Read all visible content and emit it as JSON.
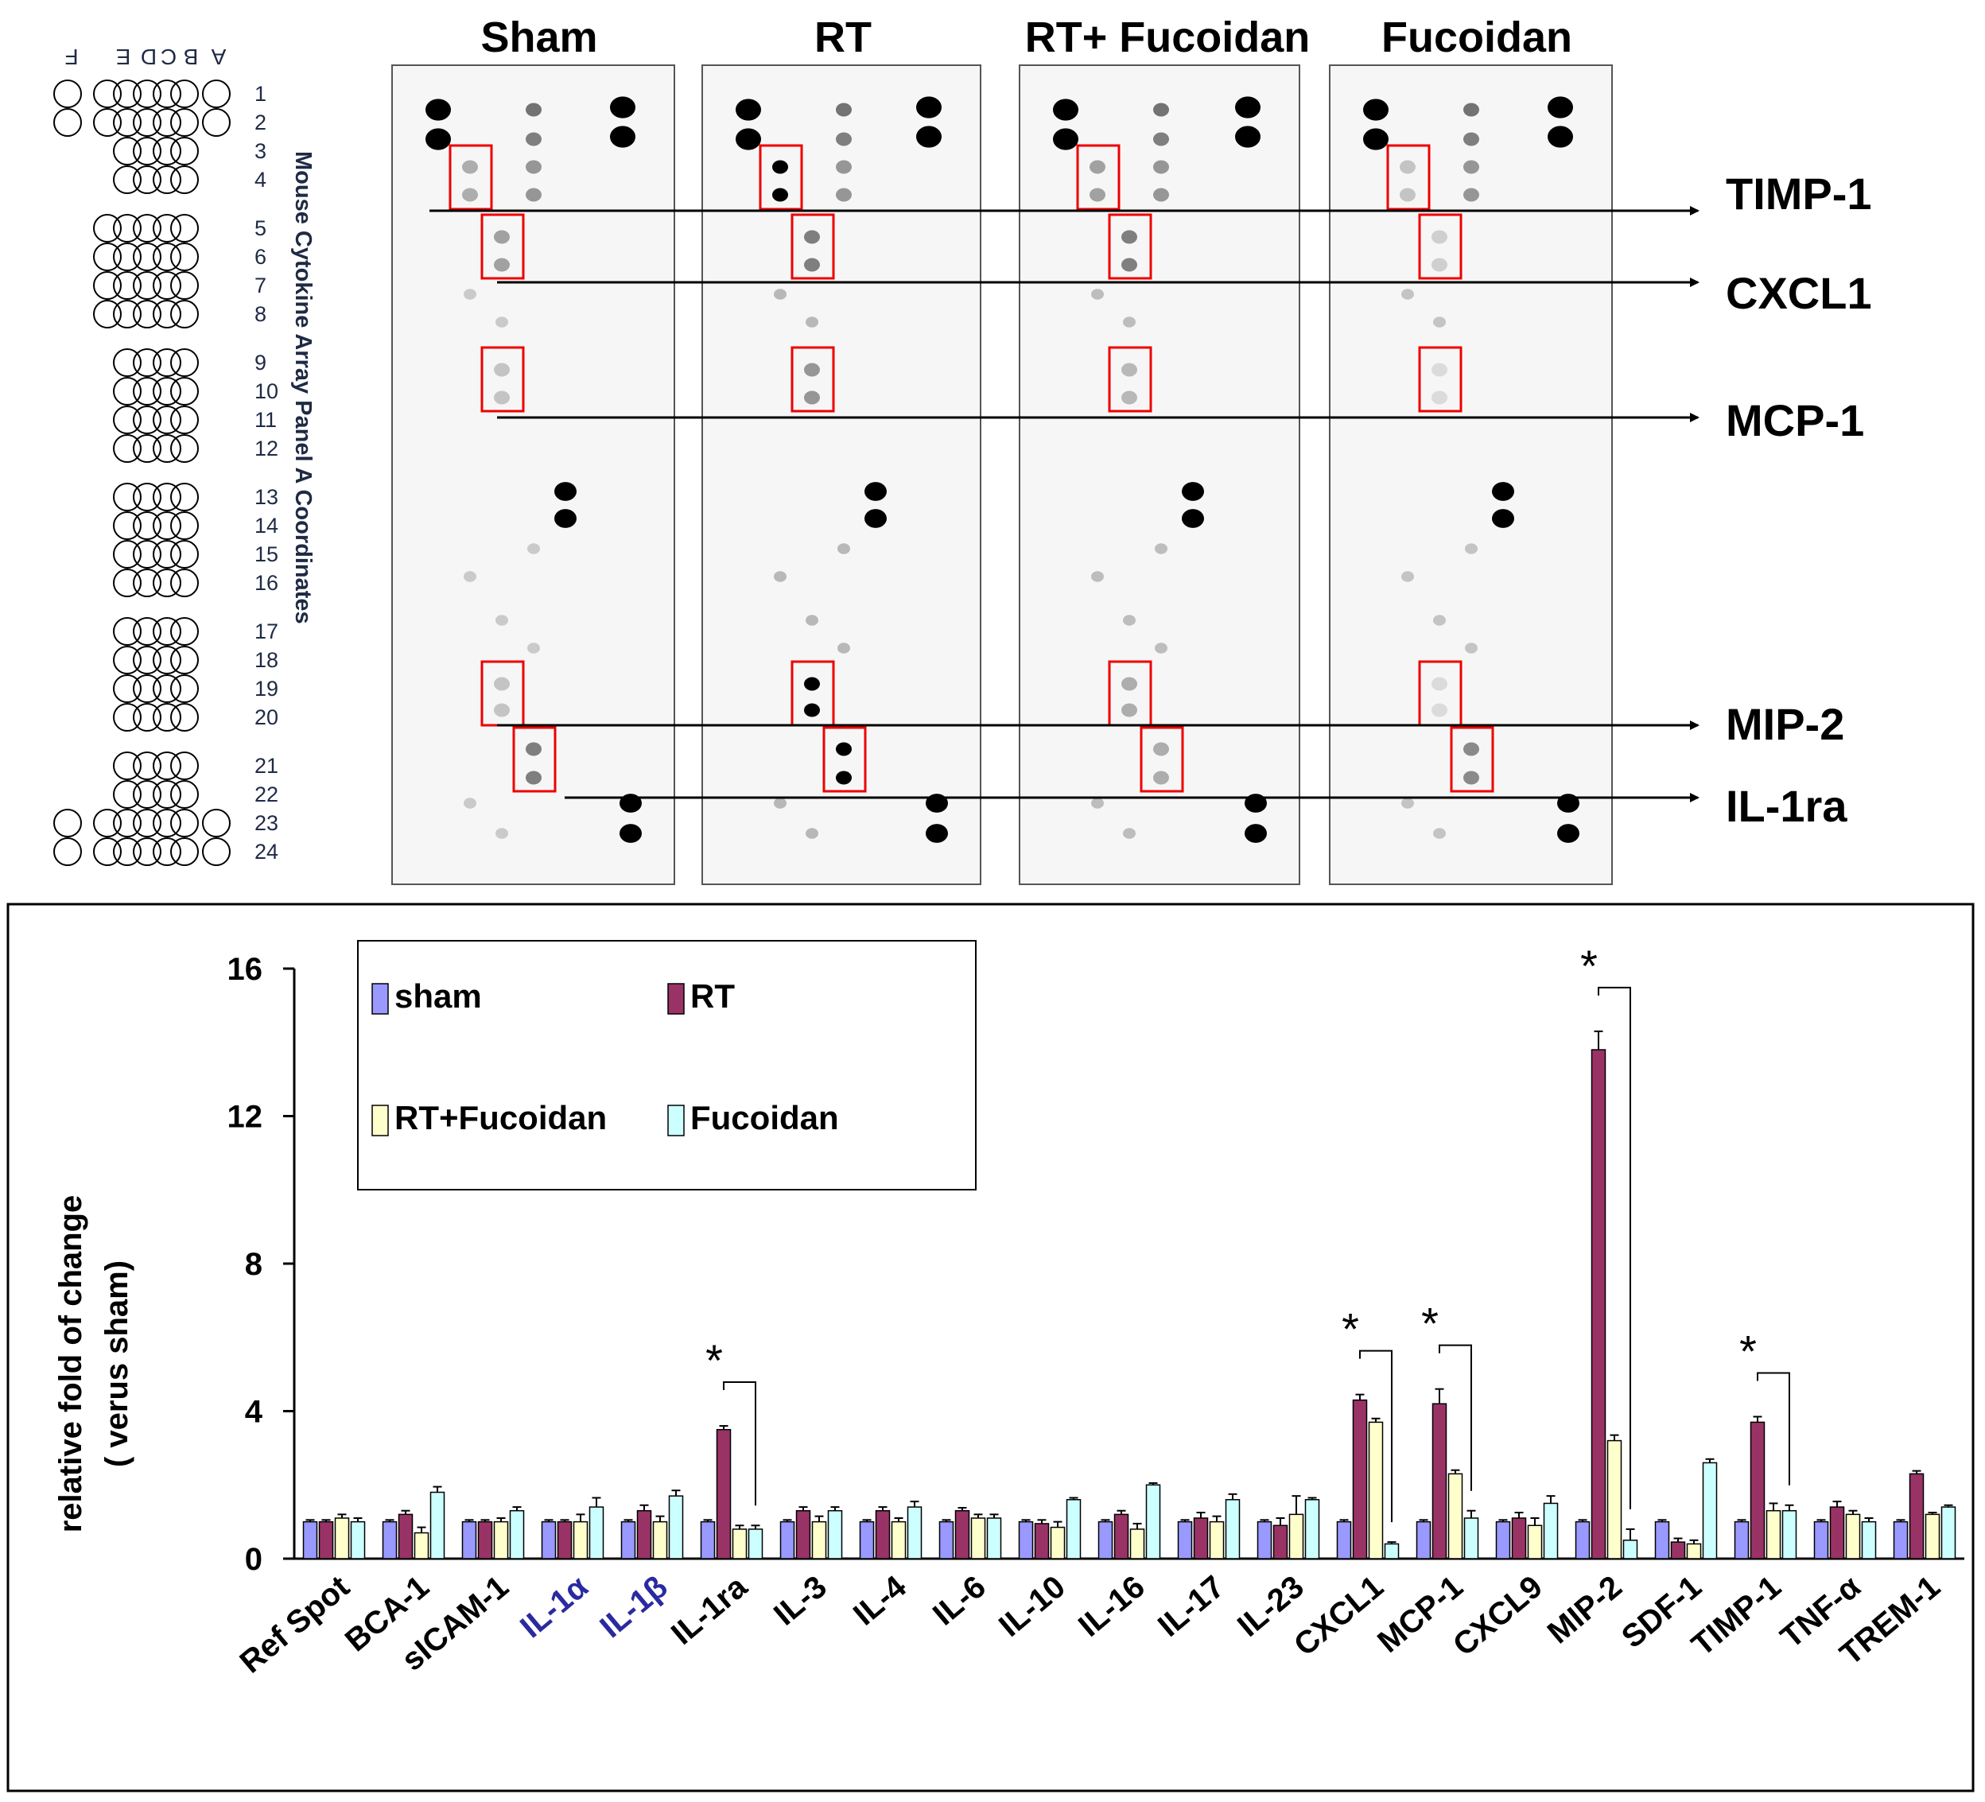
{
  "blot": {
    "panel_titles": [
      "Sham",
      "RT",
      "RT+ Fucoidan",
      "Fucoidan"
    ],
    "array_title": "Mouse Cytokine Array Panel A Coordinates",
    "column_letters": [
      "A",
      "B",
      "C",
      "D",
      "E",
      "F"
    ],
    "row_numbers": [
      "1",
      "2",
      "3",
      "4",
      "5",
      "6",
      "7",
      "8",
      "9",
      "10",
      "11",
      "12",
      "13",
      "14",
      "15",
      "16",
      "17",
      "18",
      "19",
      "20",
      "21",
      "22",
      "23",
      "24"
    ],
    "arrow_labels": [
      "TIMP-1",
      "CXCL1",
      "MCP-1",
      "MIP-2",
      "IL-1ra"
    ]
  },
  "chart_data": {
    "type": "bar",
    "ylabel": "relative fold of change",
    "ylabel2": "( verus sham)",
    "ylim": [
      0,
      16
    ],
    "yticks": [
      "0",
      "4",
      "8",
      "12",
      "16"
    ],
    "categories": [
      "Ref Spot",
      "BCA-1",
      "sICAM-1",
      "IL-1α",
      "IL-1β",
      "IL-1ra",
      "IL-3",
      "IL-4",
      "IL-6",
      "IL-10",
      "IL-16",
      "IL-17",
      "IL-23",
      "CXCL1",
      "MCP-1",
      "CXCL9",
      "MIP-2",
      "SDF-1",
      "TIMP-1",
      "TNF-α",
      "TREM-1"
    ],
    "series": [
      {
        "name": "sham",
        "color": "#9999ff",
        "values": [
          1,
          1,
          1,
          1,
          1,
          1,
          1,
          1,
          1,
          1,
          1,
          1,
          1,
          1,
          1,
          1,
          1,
          1,
          1,
          1,
          1
        ],
        "errors": [
          0.05,
          0.05,
          0.05,
          0.05,
          0.05,
          0.05,
          0.05,
          0.05,
          0.05,
          0.05,
          0.05,
          0.05,
          0.05,
          0.05,
          0.05,
          0.05,
          0.05,
          0.05,
          0.05,
          0.05,
          0.05
        ]
      },
      {
        "name": "RT",
        "color": "#993366",
        "values": [
          1,
          1.2,
          1.0,
          1.0,
          1.3,
          3.5,
          1.3,
          1.3,
          1.3,
          0.95,
          1.2,
          1.1,
          0.9,
          4.3,
          4.2,
          1.1,
          13.8,
          0.45,
          3.7,
          1.4,
          2.3
        ],
        "errors": [
          0.05,
          0.1,
          0.05,
          0.05,
          0.15,
          0.1,
          0.1,
          0.1,
          0.08,
          0.1,
          0.1,
          0.15,
          0.2,
          0.15,
          0.4,
          0.15,
          0.5,
          0.1,
          0.15,
          0.15,
          0.08
        ]
      },
      {
        "name": "RT+Fucoidan",
        "color": "#ffffcc",
        "values": [
          1.1,
          0.7,
          1.0,
          1.0,
          1.0,
          0.8,
          1.0,
          1.0,
          1.1,
          0.85,
          0.8,
          1.0,
          1.2,
          3.7,
          2.3,
          0.9,
          3.2,
          0.4,
          1.3,
          1.2,
          1.2
        ],
        "errors": [
          0.1,
          0.15,
          0.1,
          0.2,
          0.15,
          0.1,
          0.15,
          0.1,
          0.1,
          0.15,
          0.15,
          0.15,
          0.5,
          0.1,
          0.1,
          0.2,
          0.15,
          0.1,
          0.2,
          0.1,
          0.05
        ]
      },
      {
        "name": "Fucoidan",
        "color": "#ccffff",
        "values": [
          1.0,
          1.8,
          1.3,
          1.4,
          1.7,
          0.8,
          1.3,
          1.4,
          1.1,
          1.6,
          2.0,
          1.6,
          1.6,
          0.4,
          1.1,
          1.5,
          0.5,
          2.6,
          1.3,
          1.0,
          1.4
        ],
        "errors": [
          0.1,
          0.15,
          0.1,
          0.25,
          0.15,
          0.1,
          0.1,
          0.15,
          0.1,
          0.05,
          0.05,
          0.15,
          0.05,
          0.05,
          0.2,
          0.2,
          0.3,
          0.1,
          0.15,
          0.1,
          0.05
        ]
      }
    ],
    "significance_marks": [
      {
        "category": "IL-1ra",
        "label": "*"
      },
      {
        "category": "CXCL1",
        "label": "*"
      },
      {
        "category": "MCP-1",
        "label": "*"
      },
      {
        "category": "MIP-2",
        "label": "*"
      },
      {
        "category": "TIMP-1",
        "label": "*"
      }
    ],
    "legend": [
      "sham",
      "RT",
      "RT+Fucoidan",
      "Fucoidan"
    ]
  }
}
